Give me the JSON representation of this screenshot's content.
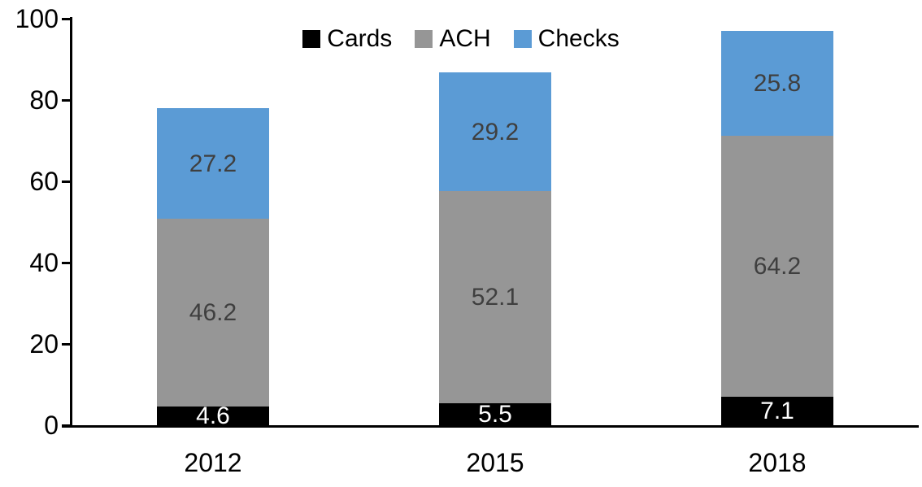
{
  "chart_data": {
    "type": "bar",
    "stacked": true,
    "title": "",
    "xlabel": "",
    "ylabel": "",
    "categories": [
      "2012",
      "2015",
      "2018"
    ],
    "series": [
      {
        "name": "Cards",
        "color": "#000000",
        "label_color": "#FFFFFF",
        "values": [
          4.6,
          5.5,
          7.1
        ]
      },
      {
        "name": "ACH",
        "color": "#969696",
        "label_color": "#3F3F3F",
        "values": [
          46.2,
          52.1,
          64.2
        ]
      },
      {
        "name": "Checks",
        "color": "#5B9BD5",
        "label_color": "#3F3F3F",
        "values": [
          27.2,
          29.2,
          25.8
        ]
      }
    ],
    "y_axis": {
      "min": 0,
      "max": 100,
      "tick_interval": 20,
      "ticks": [
        0,
        20,
        40,
        60,
        80,
        100
      ]
    },
    "legend_position": "top",
    "grid": false,
    "axis_color": "#000000"
  }
}
